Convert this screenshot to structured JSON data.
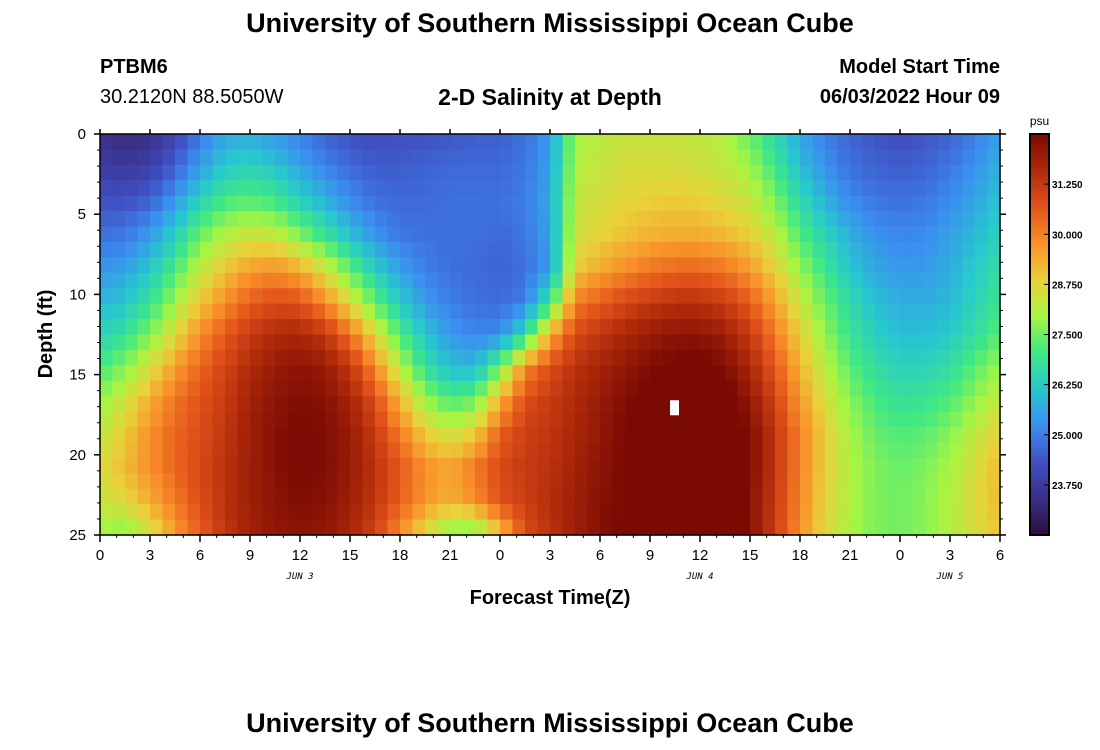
{
  "header": {
    "title": "University of Southern Mississippi Ocean Cube",
    "station": "PTBM6",
    "coords": "30.2120N  88.5050W",
    "subtitle": "2-D Salinity at Depth",
    "start_label": "Model Start Time",
    "start_value": "06/03/2022 Hour 09"
  },
  "footer": {
    "title": "University of Southern Mississippi Ocean Cube"
  },
  "chart_data": {
    "type": "heatmap",
    "title": "2-D Salinity at Depth",
    "xlabel": "Forecast Time(Z)",
    "ylabel": "Depth (ft)",
    "x_range_hours": [
      0,
      54
    ],
    "y_range_ft": [
      0,
      25
    ],
    "x_ticks": [
      "0",
      "3",
      "6",
      "9",
      "12",
      "15",
      "18",
      "21",
      "0",
      "3",
      "6",
      "9",
      "12",
      "15",
      "18",
      "21",
      "0",
      "3",
      "6"
    ],
    "day_labels": [
      {
        "label": "JUN 3",
        "hour": 12
      },
      {
        "label": "JUN 4",
        "hour": 36
      },
      {
        "label": "JUN 5",
        "hour": 51
      }
    ],
    "y_ticks": [
      "0",
      "5",
      "10",
      "15",
      "20",
      "25"
    ],
    "colorbar": {
      "unit": "psu",
      "min": 22.5,
      "max": 32.5,
      "ticks": [
        "23.750",
        "25.000",
        "26.250",
        "27.500",
        "28.750",
        "30.000",
        "31.250"
      ],
      "colors": [
        "#2a0f3d",
        "#3a2f86",
        "#4050c4",
        "#3b8ef0",
        "#27c8ce",
        "#3fe885",
        "#a6f542",
        "#e9d23a",
        "#f9912a",
        "#e2521a",
        "#b02a0a",
        "#7a0a03"
      ]
    },
    "salinity_field_psu": [
      [
        23.5,
        23.3,
        23.4,
        24.0,
        24.9,
        25.6,
        25.7,
        25.4,
        25.0,
        24.6,
        24.3,
        24.2,
        24.3,
        24.3,
        24.4,
        24.5,
        24.5,
        24.8,
        25.4,
        27.9,
        28.2,
        28.4,
        28.4,
        28.4,
        28.3,
        28.1,
        27.4,
        26.5,
        25.6,
        25.0,
        24.6,
        24.4,
        24.2,
        24.4,
        24.6,
        25.0,
        25.5
      ],
      [
        23.8,
        23.7,
        23.9,
        24.6,
        25.5,
        26.2,
        26.4,
        26.1,
        25.6,
        25.1,
        24.7,
        24.5,
        24.5,
        24.6,
        24.7,
        24.7,
        24.7,
        24.9,
        25.5,
        28.1,
        28.4,
        28.6,
        28.6,
        28.6,
        28.5,
        28.3,
        27.9,
        27.0,
        26.0,
        25.3,
        24.8,
        24.6,
        24.5,
        24.6,
        24.9,
        25.3,
        25.8
      ],
      [
        24.3,
        24.3,
        24.6,
        25.4,
        26.4,
        27.1,
        27.3,
        27.0,
        26.4,
        25.8,
        25.2,
        24.8,
        24.7,
        24.7,
        24.8,
        24.8,
        24.8,
        25.0,
        25.6,
        28.3,
        28.6,
        28.8,
        28.9,
        29.0,
        28.9,
        28.7,
        28.4,
        27.6,
        26.6,
        25.8,
        25.2,
        24.9,
        24.8,
        24.9,
        25.2,
        25.6,
        26.1
      ],
      [
        24.8,
        24.9,
        25.4,
        26.3,
        27.4,
        28.1,
        28.4,
        28.3,
        27.6,
        26.8,
        26.0,
        25.3,
        24.9,
        24.8,
        24.8,
        24.8,
        24.7,
        24.9,
        25.5,
        28.5,
        28.8,
        29.1,
        29.3,
        29.4,
        29.4,
        29.2,
        28.9,
        28.2,
        27.2,
        26.4,
        25.7,
        25.3,
        25.1,
        25.2,
        25.5,
        25.9,
        26.4
      ],
      [
        25.3,
        25.5,
        26.1,
        27.1,
        28.2,
        29.0,
        29.5,
        29.7,
        29.3,
        28.4,
        27.3,
        26.2,
        25.5,
        25.0,
        24.8,
        24.7,
        24.6,
        24.8,
        25.4,
        28.9,
        29.4,
        29.8,
        30.1,
        30.3,
        30.3,
        30.1,
        29.6,
        28.8,
        27.8,
        26.9,
        26.1,
        25.6,
        25.4,
        25.4,
        25.7,
        26.2,
        26.7
      ],
      [
        25.8,
        26.1,
        26.8,
        27.9,
        29.0,
        29.8,
        30.5,
        30.8,
        30.7,
        29.8,
        28.6,
        27.3,
        26.2,
        25.4,
        25.0,
        24.8,
        24.7,
        25.0,
        26.8,
        30.0,
        30.5,
        30.9,
        31.2,
        31.4,
        31.4,
        31.1,
        30.5,
        29.5,
        28.4,
        27.4,
        26.6,
        26.0,
        25.7,
        25.7,
        25.9,
        26.4,
        26.9
      ],
      [
        26.4,
        26.8,
        27.6,
        28.7,
        29.8,
        30.6,
        31.2,
        31.6,
        31.7,
        31.3,
        30.2,
        28.7,
        27.2,
        26.1,
        25.4,
        25.1,
        25.2,
        26.6,
        29.4,
        30.9,
        31.3,
        31.7,
        32.0,
        32.2,
        32.2,
        31.9,
        31.2,
        30.1,
        28.9,
        27.8,
        26.9,
        26.3,
        26.0,
        26.0,
        26.2,
        26.7,
        27.3
      ],
      [
        27.1,
        27.7,
        28.6,
        29.6,
        30.4,
        31.0,
        31.6,
        32.0,
        32.2,
        32.0,
        31.3,
        29.9,
        28.2,
        26.8,
        26.0,
        25.9,
        27.5,
        29.9,
        30.8,
        31.4,
        31.8,
        32.1,
        32.4,
        32.6,
        32.7,
        32.4,
        31.7,
        30.6,
        29.3,
        28.2,
        27.3,
        26.7,
        26.4,
        26.4,
        26.7,
        27.3,
        27.9
      ],
      [
        27.8,
        28.5,
        29.4,
        30.2,
        30.7,
        31.2,
        31.8,
        32.2,
        32.4,
        32.3,
        31.8,
        30.8,
        29.3,
        27.9,
        27.2,
        27.5,
        29.4,
        30.8,
        31.2,
        31.6,
        32.0,
        32.4,
        32.7,
        32.9,
        33.0,
        32.8,
        32.1,
        31.0,
        29.7,
        28.6,
        27.7,
        27.1,
        26.8,
        26.9,
        27.2,
        27.8,
        28.4
      ],
      [
        28.3,
        29.0,
        29.8,
        30.4,
        30.8,
        31.3,
        31.9,
        32.3,
        32.5,
        32.4,
        32.0,
        31.2,
        30.1,
        29.0,
        28.5,
        29.0,
        30.5,
        31.1,
        31.3,
        31.7,
        32.1,
        32.5,
        32.8,
        33.1,
        33.2,
        33.0,
        32.4,
        31.3,
        30.0,
        28.9,
        28.0,
        27.4,
        27.2,
        27.3,
        27.7,
        28.3,
        28.9
      ],
      [
        28.6,
        29.2,
        29.8,
        30.4,
        30.9,
        31.4,
        31.9,
        32.3,
        32.5,
        32.4,
        32.0,
        31.4,
        30.6,
        29.8,
        29.5,
        30.1,
        30.9,
        31.2,
        31.4,
        31.8,
        32.2,
        32.5,
        32.8,
        33.1,
        33.2,
        33.0,
        32.4,
        31.3,
        30.0,
        28.9,
        28.1,
        27.6,
        27.4,
        27.6,
        28.0,
        28.6,
        29.2
      ],
      [
        28.4,
        28.7,
        29.4,
        30.1,
        30.8,
        31.4,
        31.9,
        32.2,
        32.4,
        32.3,
        31.9,
        31.3,
        30.5,
        29.7,
        29.3,
        29.8,
        30.7,
        31.1,
        31.5,
        31.9,
        32.3,
        32.5,
        32.7,
        33.0,
        33.1,
        33.0,
        32.3,
        31.2,
        29.9,
        28.8,
        28.1,
        27.6,
        27.5,
        27.7,
        28.1,
        28.7,
        29.2
      ],
      [
        27.9,
        27.6,
        28.4,
        29.6,
        30.5,
        31.3,
        31.8,
        32.1,
        32.2,
        32.1,
        31.7,
        31.0,
        29.8,
        28.6,
        27.6,
        27.4,
        29.0,
        30.8,
        31.4,
        31.9,
        32.3,
        32.6,
        32.7,
        32.9,
        33.1,
        33.0,
        32.3,
        31.1,
        29.8,
        28.7,
        28.0,
        27.6,
        27.5,
        27.7,
        28.1,
        28.6,
        29.1
      ]
    ]
  }
}
